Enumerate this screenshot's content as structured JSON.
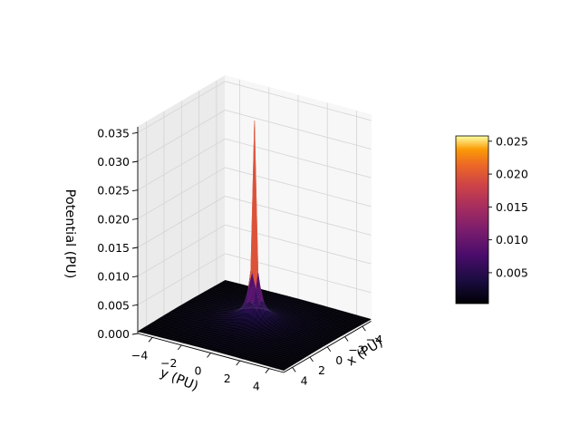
{
  "chart_data": {
    "type": "surface3d",
    "title": "",
    "xlabel": "x (PU)",
    "ylabel": "y (PU)",
    "zlabel": "Potential (PU)",
    "x_ticks": [
      "−4",
      "−2",
      "0",
      "2",
      "4"
    ],
    "y_ticks": [
      "−4",
      "−2",
      "0",
      "2",
      "4"
    ],
    "z_ticks": [
      "0.000",
      "0.005",
      "0.010",
      "0.015",
      "0.020",
      "0.025",
      "0.030",
      "0.035"
    ],
    "x_range": [
      -5,
      5
    ],
    "y_range": [
      -5,
      5
    ],
    "z_range": [
      0,
      0.036
    ],
    "peak": {
      "x": 0,
      "y": 0,
      "z": 0.036
    },
    "colormap": "inferno",
    "colorbar": {
      "ticks": [
        "0.005",
        "0.010",
        "0.015",
        "0.020",
        "0.025"
      ],
      "range": [
        0.0003,
        0.0258
      ]
    },
    "grid": true
  }
}
